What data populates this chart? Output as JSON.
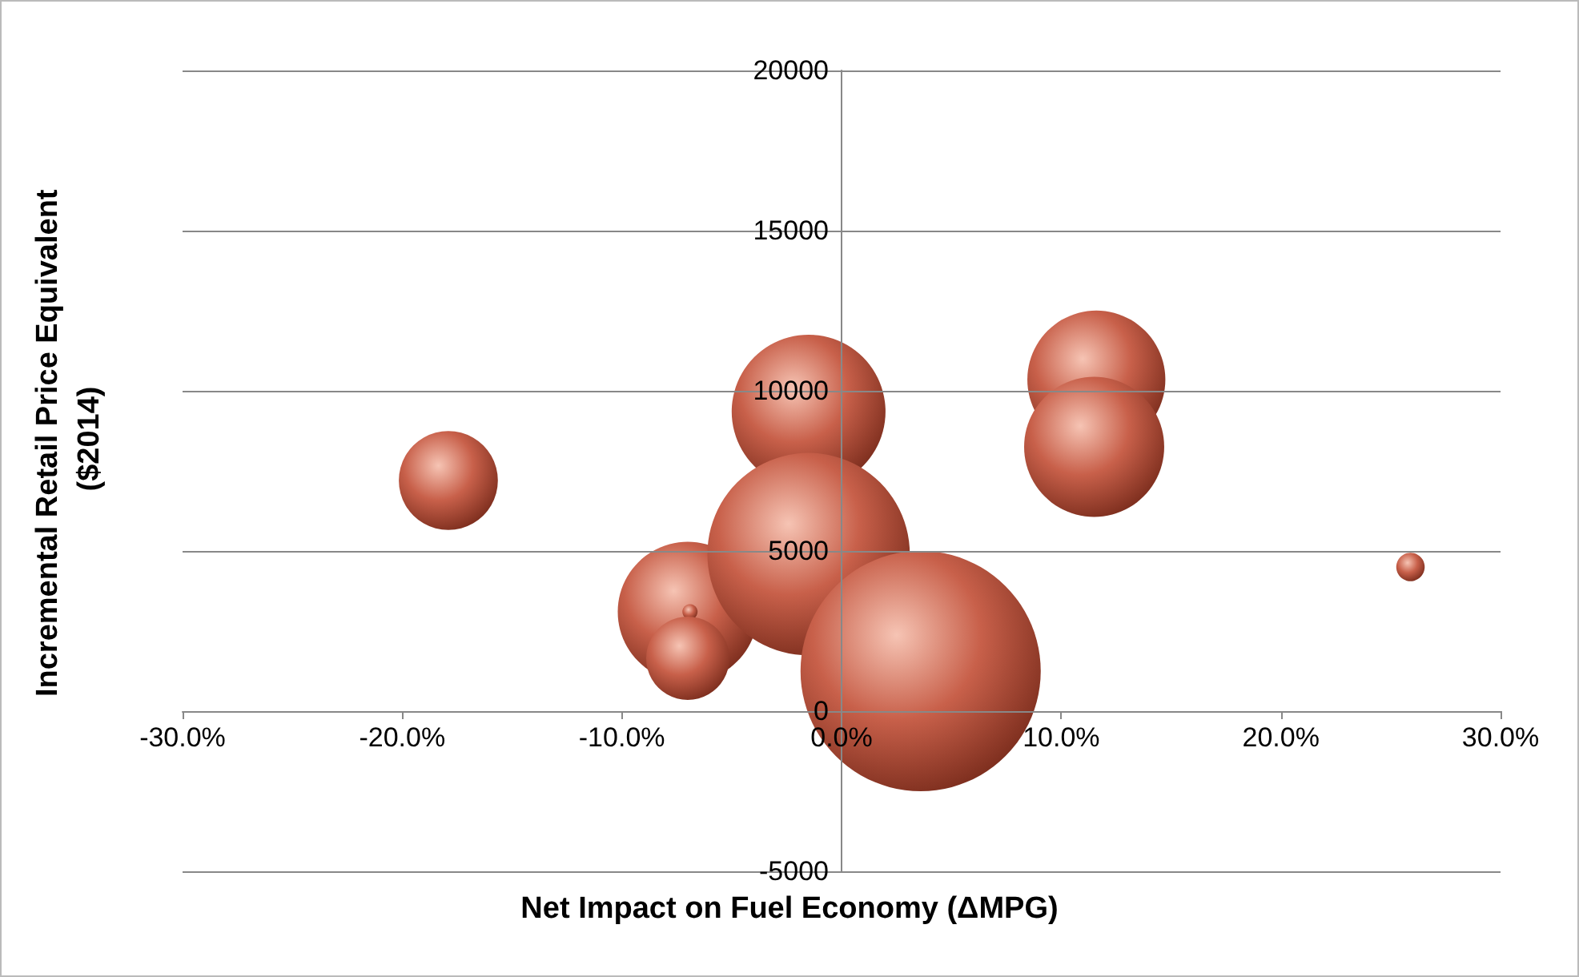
{
  "chart_data": {
    "type": "bubble",
    "xlabel": "Net Impact on Fuel Economy (ΔMPG)",
    "ylabel": "Incremental Retail Price Equivalent ($2014)",
    "series": [
      {
        "color": "#c8604a",
        "x": [
          -17.9,
          -7.0,
          -6.9,
          -7.0,
          -1.5,
          -1.5,
          3.6,
          11.6,
          11.5,
          25.9
        ],
        "values": [
          7200,
          3100,
          3100,
          1650,
          9350,
          4900,
          1250,
          10350,
          8250,
          4500
        ],
        "sizes": [
          0.17,
          0.34,
          0.004,
          0.12,
          0.41,
          0.71,
          1,
          0.33,
          0.34,
          0.014
        ]
      }
    ],
    "xlim": [
      -30,
      30
    ],
    "xticks": [
      {
        "value": -30,
        "label": "-30.0%"
      },
      {
        "value": -20,
        "label": "-20.0%"
      },
      {
        "value": -10,
        "label": "-10.0%"
      },
      {
        "value": 0,
        "label": "0.0%"
      },
      {
        "value": 10,
        "label": "10.0%"
      },
      {
        "value": 20,
        "label": "20.0%"
      },
      {
        "value": 30,
        "label": "30.0%"
      }
    ],
    "ylim": [
      -5000,
      20000
    ],
    "yticks": [
      -5000,
      0,
      5000,
      10000,
      15000,
      20000
    ],
    "grid": "y"
  }
}
